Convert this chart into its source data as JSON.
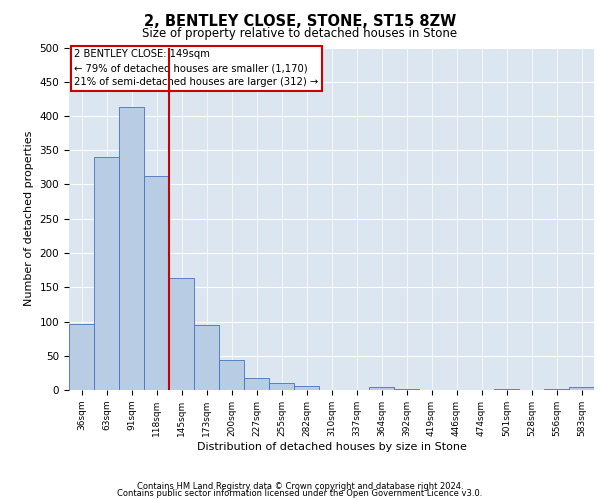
{
  "title1": "2, BENTLEY CLOSE, STONE, ST15 8ZW",
  "title2": "Size of property relative to detached houses in Stone",
  "xlabel": "Distribution of detached houses by size in Stone",
  "ylabel": "Number of detached properties",
  "categories": [
    "36sqm",
    "63sqm",
    "91sqm",
    "118sqm",
    "145sqm",
    "173sqm",
    "200sqm",
    "227sqm",
    "255sqm",
    "282sqm",
    "310sqm",
    "337sqm",
    "364sqm",
    "392sqm",
    "419sqm",
    "446sqm",
    "474sqm",
    "501sqm",
    "528sqm",
    "556sqm",
    "583sqm"
  ],
  "values": [
    97,
    340,
    413,
    312,
    163,
    95,
    44,
    17,
    10,
    6,
    0,
    0,
    5,
    1,
    0,
    0,
    0,
    1,
    0,
    1,
    4
  ],
  "bar_color": "#b8cce4",
  "bar_edge_color": "#4472c4",
  "plot_bg_color": "#dce6f1",
  "grid_color": "#ffffff",
  "red_line_index": 4,
  "annotation_text": "2 BENTLEY CLOSE: 149sqm\n← 79% of detached houses are smaller (1,170)\n21% of semi-detached houses are larger (312) →",
  "annotation_box_color": "#ffffff",
  "annotation_box_edge": "#cc0000",
  "footer1": "Contains HM Land Registry data © Crown copyright and database right 2024.",
  "footer2": "Contains public sector information licensed under the Open Government Licence v3.0.",
  "ylim": [
    0,
    500
  ],
  "yticks": [
    0,
    50,
    100,
    150,
    200,
    250,
    300,
    350,
    400,
    450,
    500
  ]
}
